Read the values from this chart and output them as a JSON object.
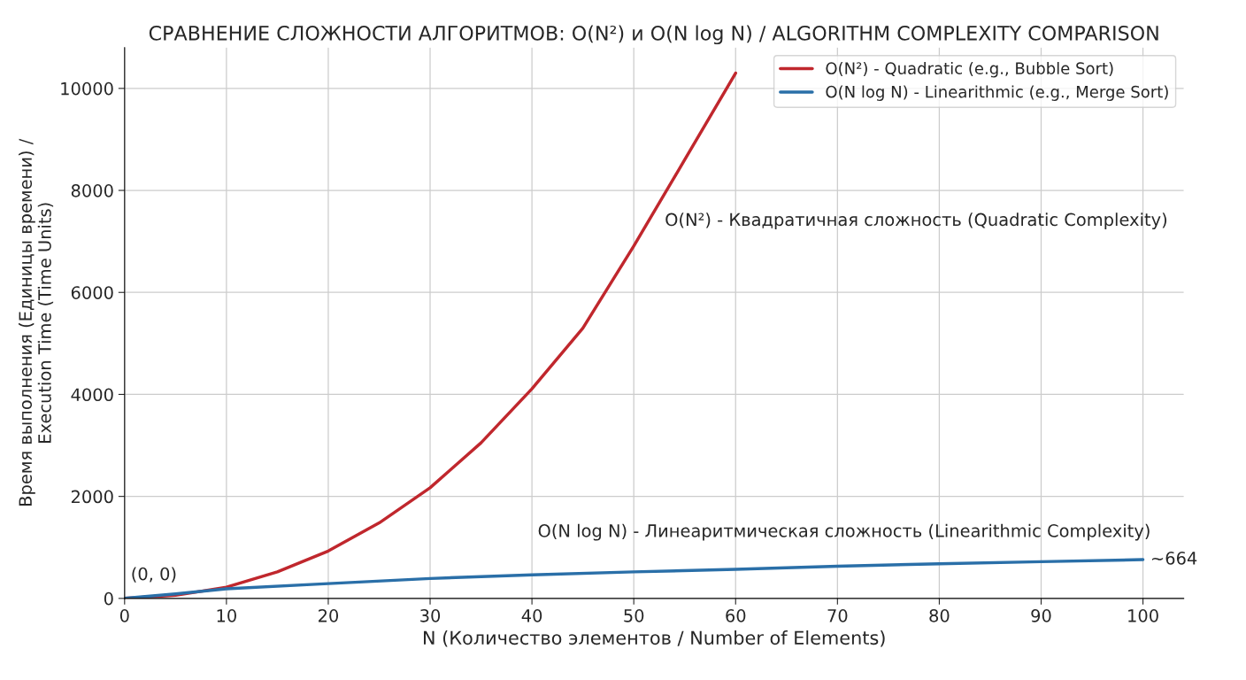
{
  "chart_data": {
    "type": "line",
    "title": "СРАВНЕНИЕ СЛОЖНОСТИ АЛГОРИТМОВ: O(N²) и O(N log N) / ALGORITHM COMPLEXITY COMPARISON",
    "xlabel": "N (Количество элементов / Number of Elements)",
    "ylabel": "Время выполнения (Единицы времени) /\nExecution Time (Time Units)",
    "series": [
      {
        "name": "O(N²) - Quadratic (e.g., Bubble Sort)",
        "color": "#c0272d",
        "x": [
          0,
          5,
          10,
          15,
          20,
          25,
          30,
          35,
          40,
          45,
          50,
          55,
          60
        ],
        "values": [
          0,
          60,
          220,
          520,
          930,
          1480,
          2170,
          3050,
          4110,
          5300,
          6910,
          8600,
          10300
        ]
      },
      {
        "name": "O(N log N) - Linearithmic (e.g., Merge Sort)",
        "color": "#2a6fa8",
        "x": [
          0,
          5,
          10,
          20,
          30,
          40,
          50,
          60,
          70,
          80,
          90,
          100
        ],
        "values": [
          0,
          90,
          190,
          290,
          390,
          460,
          520,
          570,
          630,
          680,
          720,
          760
        ]
      }
    ],
    "annotations": [
      "O(N²) - Квадратичная сложность (Quadratic Complexity)",
      "O(N log N) - Линеаритмическая сложность (Linearithmic Complexity)",
      {
        "text": "(0, 0)",
        "x": 0,
        "y": 0
      },
      {
        "text": "~664",
        "x": 100,
        "y": 760
      }
    ],
    "xlim": [
      0,
      104
    ],
    "ylim": [
      0,
      10800
    ],
    "xticks": [
      0,
      10,
      20,
      30,
      40,
      50,
      60,
      70,
      80,
      90,
      100
    ],
    "yticks": [
      0,
      2000,
      4000,
      6000,
      8000,
      10000
    ],
    "grid": true,
    "legend": "top right",
    "marker": "none",
    "line_style": "solid"
  }
}
